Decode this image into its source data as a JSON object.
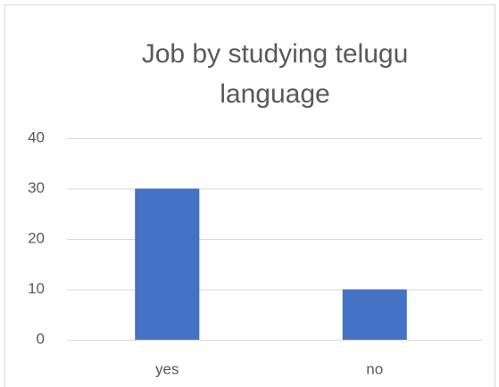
{
  "chart_data": {
    "type": "bar",
    "title": "Job by studying telugu language",
    "categories": [
      "yes",
      "no"
    ],
    "values": [
      30,
      10
    ],
    "color": "#4472c4",
    "ylim": [
      0,
      40
    ],
    "yticks": [
      0,
      10,
      20,
      30,
      40
    ],
    "grid": true
  }
}
